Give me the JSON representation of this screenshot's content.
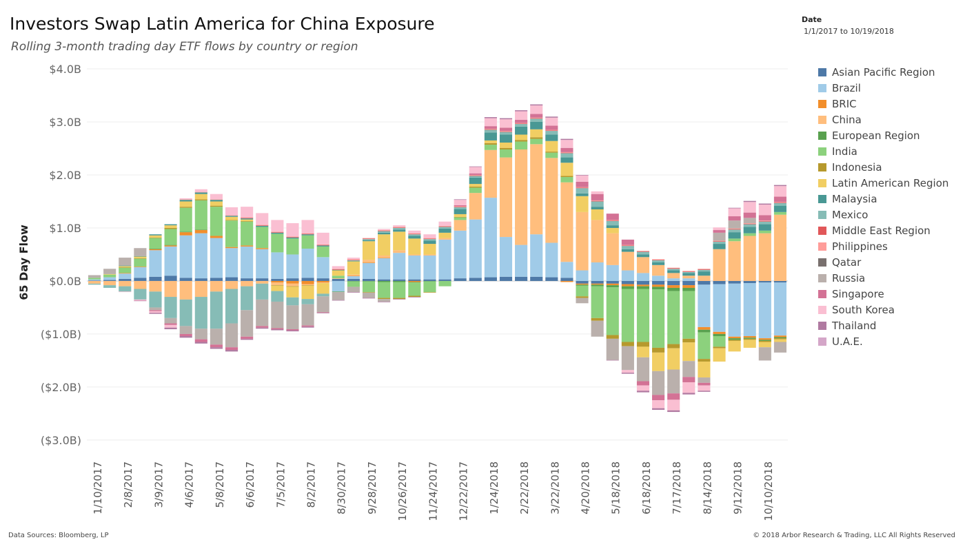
{
  "header": {
    "title": "Investors Swap Latin America for China Exposure",
    "subtitle": "Rolling 3-month trading day ETF flows by country or region"
  },
  "filter": {
    "label": "Date",
    "value": "1/1/2017 to 10/19/2018"
  },
  "footer": {
    "source": "Data Sources: Bloomberg, LP",
    "copyright": "© 2018 Arbor Research & Trading, LLC All Rights Reserved"
  },
  "chart_data": {
    "type": "bar",
    "stacked": true,
    "ylabel": "65 Day Flow",
    "xlabel": "",
    "ylim": [
      -3.3,
      4.0
    ],
    "y_unit": "billions USD",
    "y_ticks": [
      {
        "value": 4,
        "label": "$4.0B"
      },
      {
        "value": 3,
        "label": "$3.0B"
      },
      {
        "value": 2,
        "label": "$2.0B"
      },
      {
        "value": 1,
        "label": "$1.0B"
      },
      {
        "value": 0,
        "label": "$0.0B"
      },
      {
        "value": -1,
        "label": "($1.0B)"
      },
      {
        "value": -2,
        "label": "($2.0B)"
      },
      {
        "value": -3,
        "label": "($3.0B)"
      }
    ],
    "x_ticks": [
      "1/10/2017",
      "2/8/2017",
      "3/9/2017",
      "4/6/2017",
      "5/8/2017",
      "6/6/2017",
      "7/5/2017",
      "8/2/2017",
      "8/30/2017",
      "9/28/2017",
      "10/26/2017",
      "11/24/2017",
      "12/22/2017",
      "1/24/2018",
      "2/22/2018",
      "3/22/2018",
      "4/20/2018",
      "5/18/2018",
      "6/18/2018",
      "7/17/2018",
      "8/14/2018",
      "9/12/2018",
      "10/10/2018"
    ],
    "grid": true,
    "legend_position": "right",
    "categories": [
      "1/10/2017",
      "1/25/2017",
      "2/8/2017",
      "2/23/2017",
      "3/9/2017",
      "3/23/2017",
      "4/6/2017",
      "4/21/2017",
      "5/8/2017",
      "5/22/2017",
      "6/6/2017",
      "6/20/2017",
      "7/5/2017",
      "7/19/2017",
      "8/2/2017",
      "8/16/2017",
      "8/30/2017",
      "9/14/2017",
      "9/28/2017",
      "10/12/2017",
      "10/26/2017",
      "11/9/2017",
      "11/24/2017",
      "12/8/2017",
      "12/22/2017",
      "1/9/2018",
      "1/24/2018",
      "2/7/2018",
      "2/22/2018",
      "3/8/2018",
      "3/22/2018",
      "4/5/2018",
      "4/20/2018",
      "5/4/2018",
      "5/18/2018",
      "6/1/2018",
      "6/18/2018",
      "7/2/2018",
      "7/17/2018",
      "7/31/2018",
      "8/14/2018",
      "8/28/2018",
      "9/12/2018",
      "9/26/2018",
      "10/10/2018",
      "10/19/2018"
    ],
    "series": [
      {
        "name": "Asian Pacific Region",
        "color": "#4E79A7",
        "values": [
          0.01,
          0.02,
          0.04,
          0.06,
          0.08,
          0.1,
          0.06,
          0.05,
          0.06,
          0.07,
          0.05,
          0.05,
          0.04,
          0.05,
          0.06,
          0.05,
          0.04,
          0.04,
          0.04,
          0.03,
          0.03,
          0.03,
          0.03,
          0.03,
          0.05,
          0.06,
          0.07,
          0.08,
          0.08,
          0.08,
          0.07,
          0.06,
          -0.05,
          -0.05,
          -0.05,
          -0.06,
          -0.07,
          -0.07,
          -0.08,
          -0.08,
          -0.07,
          -0.06,
          -0.05,
          -0.04,
          -0.03,
          -0.03
        ]
      },
      {
        "name": "Brazil",
        "color": "#A0CBE8",
        "values": [
          0.02,
          0.05,
          0.1,
          0.2,
          0.5,
          0.55,
          0.8,
          0.85,
          0.75,
          0.55,
          0.6,
          0.55,
          0.5,
          0.45,
          0.55,
          0.4,
          -0.2,
          0.05,
          0.3,
          0.4,
          0.5,
          0.45,
          0.45,
          0.75,
          0.9,
          1.1,
          1.5,
          0.75,
          0.6,
          0.8,
          0.65,
          0.3,
          0.2,
          0.35,
          0.3,
          0.2,
          0.15,
          0.1,
          0.05,
          0.05,
          -0.8,
          -0.9,
          -1.0,
          -1.0,
          -1.05,
          -1.0
        ]
      },
      {
        "name": "BRIC",
        "color": "#F28E2B",
        "values": [
          0.0,
          0.0,
          0.01,
          0.01,
          0.02,
          0.02,
          0.06,
          0.06,
          0.04,
          0.02,
          0.02,
          0.02,
          -0.03,
          -0.05,
          -0.06,
          -0.03,
          0.0,
          0.01,
          0.01,
          0.01,
          0.0,
          -0.02,
          0.0,
          0.0,
          0.0,
          0.0,
          0.0,
          0.0,
          0.0,
          0.0,
          0.0,
          -0.02,
          -0.02,
          -0.02,
          -0.03,
          -0.04,
          -0.03,
          -0.04,
          -0.05,
          -0.05,
          -0.05,
          -0.04,
          -0.03,
          -0.03,
          -0.03,
          -0.03
        ]
      },
      {
        "name": "China",
        "color": "#FFBE7D",
        "values": [
          -0.05,
          -0.08,
          -0.1,
          -0.15,
          -0.2,
          -0.3,
          -0.35,
          -0.3,
          -0.2,
          -0.15,
          -0.1,
          -0.05,
          -0.05,
          -0.05,
          -0.02,
          -0.01,
          0.01,
          0.02,
          0.05,
          0.04,
          0.05,
          0.02,
          0.02,
          0.03,
          0.2,
          0.5,
          0.9,
          1.5,
          1.8,
          1.7,
          1.6,
          1.5,
          1.1,
          0.8,
          0.6,
          0.35,
          0.3,
          0.2,
          0.1,
          0.05,
          0.1,
          0.6,
          0.75,
          0.85,
          0.9,
          1.25
        ]
      },
      {
        "name": "European Region",
        "color": "#59A14F",
        "values": [
          0.0,
          0.0,
          0.0,
          0.0,
          0.01,
          0.01,
          0.01,
          0.01,
          0.0,
          0.0,
          0.0,
          0.0,
          0.0,
          0.0,
          0.0,
          0.0,
          -0.01,
          -0.01,
          -0.01,
          -0.02,
          -0.02,
          -0.01,
          -0.01,
          0.0,
          0.0,
          0.0,
          0.0,
          0.0,
          0.0,
          0.0,
          0.0,
          0.0,
          -0.02,
          -0.03,
          -0.04,
          -0.05,
          -0.05,
          -0.05,
          -0.06,
          -0.06,
          -0.05,
          -0.04,
          -0.03,
          -0.02,
          -0.02,
          -0.02
        ]
      },
      {
        "name": "India",
        "color": "#8CD17D",
        "values": [
          0.03,
          0.05,
          0.1,
          0.15,
          0.2,
          0.3,
          0.45,
          0.55,
          0.55,
          0.5,
          0.45,
          0.4,
          0.35,
          0.3,
          0.25,
          0.2,
          0.05,
          -0.1,
          -0.2,
          -0.3,
          -0.3,
          -0.25,
          -0.2,
          -0.1,
          0.05,
          0.1,
          0.1,
          0.15,
          0.15,
          0.1,
          0.1,
          0.1,
          -0.2,
          -0.6,
          -0.9,
          -1.0,
          -1.0,
          -1.1,
          -1.0,
          -0.9,
          -0.5,
          -0.2,
          0.05,
          0.05,
          0.05,
          0.05
        ]
      },
      {
        "name": "Indonesia",
        "color": "#B6992D",
        "values": [
          0.0,
          0.0,
          0.01,
          0.01,
          0.01,
          0.02,
          0.02,
          0.02,
          0.02,
          0.01,
          0.01,
          0.0,
          -0.01,
          -0.01,
          -0.01,
          0.0,
          0.0,
          0.0,
          -0.01,
          -0.02,
          -0.02,
          -0.02,
          -0.01,
          0.0,
          0.01,
          0.02,
          0.03,
          0.03,
          0.03,
          0.03,
          0.02,
          0.02,
          -0.03,
          -0.05,
          -0.07,
          -0.08,
          -0.09,
          -0.09,
          -0.08,
          -0.07,
          -0.05,
          -0.03,
          -0.02,
          -0.02,
          -0.02,
          -0.02
        ]
      },
      {
        "name": "Latin American Region",
        "color": "#F1CE63",
        "values": [
          0.0,
          0.01,
          0.02,
          0.03,
          0.04,
          0.05,
          0.1,
          0.1,
          0.08,
          0.06,
          0.03,
          0.0,
          -0.1,
          -0.2,
          -0.25,
          -0.2,
          0.1,
          0.25,
          0.35,
          0.4,
          0.35,
          0.3,
          0.2,
          0.1,
          0.05,
          0.05,
          0.05,
          0.1,
          0.1,
          0.15,
          0.2,
          0.25,
          0.3,
          0.2,
          0.1,
          0.0,
          -0.2,
          -0.35,
          -0.4,
          -0.35,
          -0.3,
          -0.25,
          -0.2,
          -0.15,
          -0.1,
          -0.05
        ]
      },
      {
        "name": "Malaysia",
        "color": "#499894",
        "values": [
          0.0,
          0.0,
          0.01,
          0.01,
          0.02,
          0.02,
          0.03,
          0.03,
          0.03,
          0.02,
          0.02,
          0.02,
          0.02,
          0.02,
          0.02,
          0.02,
          0.01,
          0.01,
          0.02,
          0.03,
          0.04,
          0.05,
          0.06,
          0.08,
          0.1,
          0.12,
          0.15,
          0.15,
          0.15,
          0.14,
          0.12,
          0.1,
          0.05,
          0.05,
          0.05,
          0.05,
          0.05,
          0.05,
          0.05,
          0.05,
          0.08,
          0.1,
          0.12,
          0.12,
          0.12,
          0.12
        ]
      },
      {
        "name": "Mexico",
        "color": "#86BCB6",
        "values": [
          -0.02,
          -0.05,
          -0.1,
          -0.2,
          -0.3,
          -0.4,
          -0.5,
          -0.6,
          -0.7,
          -0.65,
          -0.45,
          -0.3,
          -0.2,
          -0.15,
          -0.1,
          -0.05,
          0.0,
          0.01,
          0.02,
          0.03,
          0.03,
          0.03,
          0.03,
          0.03,
          0.03,
          0.03,
          0.05,
          0.05,
          0.05,
          0.06,
          0.07,
          0.08,
          0.1,
          0.1,
          0.08,
          0.06,
          0.05,
          0.04,
          0.03,
          0.02,
          0.03,
          0.04,
          0.05,
          0.05,
          0.05,
          0.05
        ]
      },
      {
        "name": "Middle East Region",
        "color": "#E15759",
        "values": [
          0.0,
          0.0,
          0.0,
          0.0,
          0.0,
          0.0,
          0.0,
          0.0,
          0.0,
          0.0,
          0.01,
          0.01,
          0.01,
          0.01,
          0.01,
          0.01,
          0.01,
          0.01,
          0.01,
          0.01,
          0.01,
          0.01,
          0.01,
          0.01,
          0.01,
          0.01,
          0.01,
          0.01,
          0.01,
          0.01,
          0.01,
          0.01,
          0.01,
          0.01,
          0.01,
          0.01,
          0.01,
          0.01,
          0.01,
          0.01,
          0.01,
          0.01,
          0.01,
          0.01,
          0.01,
          0.01
        ]
      },
      {
        "name": "Philippines",
        "color": "#FF9D9A",
        "values": [
          0.0,
          0.0,
          0.0,
          0.0,
          0.0,
          0.0,
          0.01,
          0.01,
          0.01,
          0.01,
          0.01,
          0.01,
          0.01,
          0.01,
          0.01,
          0.01,
          0.01,
          0.01,
          0.01,
          0.01,
          0.01,
          0.01,
          0.01,
          0.01,
          0.01,
          0.01,
          0.01,
          0.01,
          0.01,
          0.01,
          0.01,
          0.01,
          0.01,
          0.01,
          0.01,
          0.01,
          0.01,
          0.01,
          0.01,
          0.01,
          0.01,
          0.01,
          0.01,
          0.01,
          0.01,
          0.01
        ]
      },
      {
        "name": "Qatar",
        "color": "#79706E",
        "values": [
          0.0,
          0.0,
          0.0,
          0.0,
          0.0,
          0.0,
          0.0,
          0.0,
          0.0,
          0.0,
          0.0,
          0.0,
          0.0,
          0.0,
          0.0,
          0.0,
          0.0,
          0.0,
          0.0,
          0.0,
          0.0,
          0.0,
          0.0,
          0.0,
          0.0,
          0.0,
          0.0,
          0.0,
          0.0,
          0.0,
          0.0,
          0.0,
          0.0,
          0.0,
          0.0,
          0.0,
          0.0,
          0.0,
          0.0,
          0.0,
          0.0,
          0.0,
          0.0,
          0.0,
          0.0,
          0.0
        ]
      },
      {
        "name": "Russia",
        "color": "#BAB0AC",
        "values": [
          0.05,
          0.1,
          0.15,
          0.15,
          -0.05,
          -0.1,
          -0.15,
          -0.2,
          -0.3,
          -0.45,
          -0.5,
          -0.5,
          -0.5,
          -0.45,
          -0.4,
          -0.3,
          -0.15,
          -0.1,
          -0.1,
          -0.05,
          0.0,
          0.0,
          0.0,
          0.0,
          0.0,
          0.0,
          0.0,
          0.0,
          0.0,
          0.0,
          0.0,
          0.0,
          -0.1,
          -0.3,
          -0.4,
          -0.45,
          -0.45,
          -0.45,
          -0.45,
          -0.3,
          -0.1,
          0.15,
          0.15,
          0.1,
          -0.25,
          -0.2
        ]
      },
      {
        "name": "Singapore",
        "color": "#D37295",
        "values": [
          0.0,
          0.0,
          0.0,
          0.0,
          -0.02,
          -0.03,
          -0.04,
          -0.05,
          -0.05,
          -0.05,
          -0.04,
          -0.03,
          -0.02,
          -0.02,
          -0.02,
          -0.01,
          0.0,
          0.0,
          0.0,
          0.0,
          0.0,
          0.0,
          0.0,
          0.0,
          0.02,
          0.03,
          0.05,
          0.06,
          0.06,
          0.07,
          0.08,
          0.08,
          0.1,
          0.12,
          0.12,
          0.1,
          -0.08,
          -0.1,
          -0.12,
          -0.1,
          -0.05,
          0.05,
          0.08,
          0.1,
          0.1,
          0.1
        ]
      },
      {
        "name": "South Korea",
        "color": "#FABFD2",
        "values": [
          0.0,
          0.0,
          -0.01,
          -0.02,
          -0.03,
          -0.05,
          0.02,
          0.05,
          0.1,
          0.15,
          0.2,
          0.22,
          0.22,
          0.25,
          0.25,
          0.22,
          0.05,
          0.03,
          0.0,
          0.02,
          0.03,
          0.05,
          0.07,
          0.08,
          0.1,
          0.12,
          0.15,
          0.16,
          0.16,
          0.16,
          0.15,
          0.15,
          0.12,
          0.05,
          0.0,
          -0.05,
          -0.1,
          -0.15,
          -0.2,
          -0.2,
          -0.1,
          0.05,
          0.15,
          0.2,
          0.2,
          0.2
        ]
      },
      {
        "name": "Thailand",
        "color": "#B07AA1",
        "values": [
          0.0,
          0.0,
          0.0,
          -0.01,
          -0.02,
          -0.03,
          -0.03,
          -0.03,
          -0.03,
          -0.03,
          -0.02,
          -0.02,
          -0.02,
          -0.02,
          -0.02,
          -0.01,
          -0.01,
          -0.01,
          -0.01,
          -0.01,
          -0.01,
          -0.01,
          0.0,
          0.0,
          0.01,
          0.01,
          0.02,
          0.02,
          0.02,
          0.02,
          0.02,
          0.02,
          0.01,
          0.0,
          -0.01,
          -0.02,
          -0.03,
          -0.03,
          -0.03,
          -0.03,
          -0.02,
          0.0,
          0.01,
          0.02,
          0.02,
          0.02
        ]
      },
      {
        "name": "U.A.E.",
        "color": "#D4A6C8",
        "values": [
          0.0,
          0.0,
          0.0,
          0.0,
          0.0,
          0.0,
          0.0,
          0.0,
          0.0,
          0.0,
          0.0,
          0.0,
          0.0,
          0.0,
          0.0,
          0.0,
          0.0,
          0.0,
          0.0,
          0.0,
          0.0,
          0.0,
          0.0,
          0.0,
          0.0,
          0.0,
          0.0,
          0.0,
          0.0,
          0.0,
          0.0,
          0.0,
          0.0,
          0.0,
          0.0,
          0.0,
          0.0,
          0.0,
          0.0,
          0.0,
          0.0,
          0.0,
          0.0,
          0.0,
          0.0,
          0.0
        ]
      }
    ]
  }
}
